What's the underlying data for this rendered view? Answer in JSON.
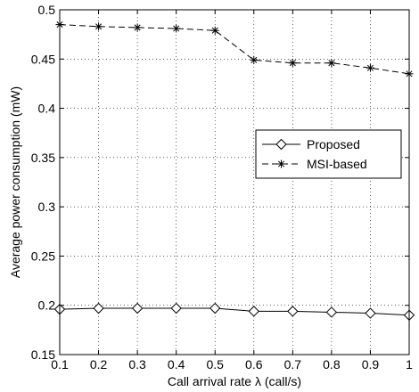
{
  "chart_data": {
    "type": "line",
    "xlabel": "Call arrival rate λ (call/s)",
    "ylabel": "Average power consumption (mW)",
    "xlim": [
      0.1,
      1
    ],
    "ylim": [
      0.15,
      0.5
    ],
    "xticks": [
      0.1,
      0.2,
      0.3,
      0.4,
      0.5,
      0.6,
      0.7,
      0.8,
      0.9,
      1
    ],
    "xtick_labels": [
      "0.1",
      "0.2",
      "0.3",
      "0.4",
      "0.5",
      "0.6",
      "0.7",
      "0.8",
      "0.9",
      "1"
    ],
    "yticks": [
      0.15,
      0.2,
      0.25,
      0.3,
      0.35,
      0.4,
      0.45,
      0.5
    ],
    "ytick_labels": [
      "0.15",
      "0.2",
      "0.25",
      "0.3",
      "0.35",
      "0.4",
      "0.45",
      "0.5"
    ],
    "grid": true,
    "legend_position": "right",
    "x": [
      0.1,
      0.2,
      0.3,
      0.4,
      0.5,
      0.6,
      0.7,
      0.8,
      0.9,
      1.0
    ],
    "series": [
      {
        "name": "Proposed",
        "marker": "diamond",
        "line": "solid",
        "color": "#000000",
        "values": [
          0.196,
          0.197,
          0.197,
          0.197,
          0.197,
          0.194,
          0.194,
          0.193,
          0.192,
          0.19
        ]
      },
      {
        "name": "MSI-based",
        "marker": "asterisk",
        "line": "dashed",
        "color": "#000000",
        "values": [
          0.485,
          0.483,
          0.482,
          0.481,
          0.479,
          0.449,
          0.446,
          0.446,
          0.441,
          0.435
        ]
      }
    ]
  }
}
